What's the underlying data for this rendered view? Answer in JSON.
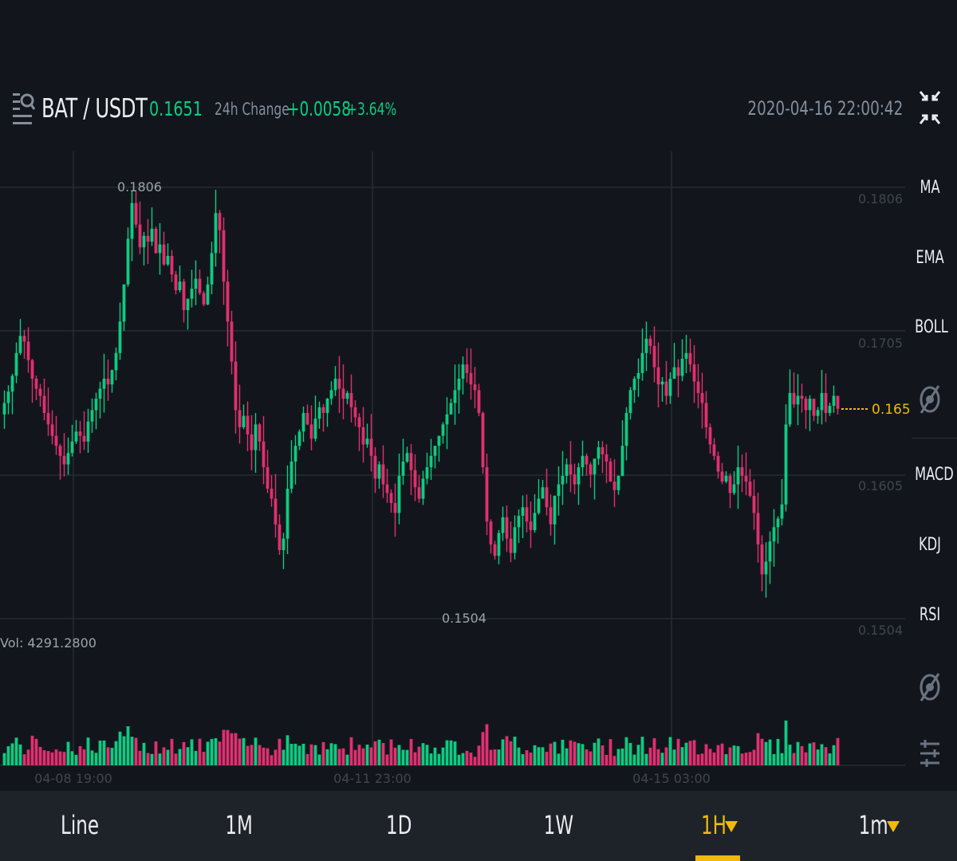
{
  "header": {
    "pair": "BAT / USDT",
    "price": "0.1651",
    "change_label": "24h Change",
    "change_abs": "+0.0058",
    "change_pct": "+3.64%",
    "datetime": "2020-04-16 22:00:42",
    "icons": {
      "pair_icon": "search-list-icon",
      "fullscreen": "fullscreen-exit-icon"
    }
  },
  "chart": {
    "high_label": "0.1806",
    "low_label": "0.1504",
    "current_price_label": "0.1651",
    "y_axis_labels": [
      "0.1806",
      "0.1705",
      "0.1605",
      "0.1504"
    ],
    "x_axis_labels": [
      "04-08 19:00",
      "04-11 23:00",
      "04-15 03:00"
    ],
    "volume_label": "Vol: 4291.2800"
  },
  "sidebar": {
    "items": [
      {
        "label": "MA"
      },
      {
        "label": "EMA"
      },
      {
        "label": "BOLL"
      },
      {
        "label": "MACD"
      },
      {
        "label": "KDJ"
      },
      {
        "label": "RSI"
      }
    ],
    "icons": [
      "eye-off-icon",
      "eye-off-icon",
      "settings-sliders-icon"
    ]
  },
  "bottom_tabs": [
    {
      "label": "Line",
      "active": false,
      "dropdown": false
    },
    {
      "label": "1M",
      "active": false,
      "dropdown": false
    },
    {
      "label": "1D",
      "active": false,
      "dropdown": false
    },
    {
      "label": "1W",
      "active": false,
      "dropdown": false
    },
    {
      "label": "1H",
      "active": true,
      "dropdown": true
    },
    {
      "label": "1m",
      "active": false,
      "dropdown": true
    }
  ],
  "colors": {
    "up": "#0ecb81",
    "down": "#e0306f",
    "accent": "#f0b90b",
    "background": "#12161c",
    "grid": "#262b33"
  },
  "chart_data": {
    "type": "candlestick",
    "interval": "1H",
    "y_range": [
      0.1504,
      0.1806
    ],
    "x_tick_labels": [
      "04-08 19:00",
      "04-11 23:00",
      "04-15 03:00"
    ],
    "marked_high": 0.1806,
    "marked_low": 0.1504,
    "last_price": 0.1651,
    "last_volume": 4291.28,
    "close_series": [
      0.1655,
      0.1663,
      0.1674,
      0.169,
      0.1702,
      0.1698,
      0.1685,
      0.1672,
      0.1665,
      0.166,
      0.1648,
      0.164,
      0.1632,
      0.1625,
      0.1618,
      0.1612,
      0.162,
      0.1628,
      0.1635,
      0.1632,
      0.1628,
      0.1642,
      0.165,
      0.1658,
      0.1665,
      0.1672,
      0.1668,
      0.1678,
      0.169,
      0.1712,
      0.1738,
      0.177,
      0.1795,
      0.178,
      0.1764,
      0.1772,
      0.1768,
      0.1777,
      0.176,
      0.1766,
      0.1752,
      0.1758,
      0.1745,
      0.1734,
      0.174,
      0.172,
      0.1728,
      0.1735,
      0.1742,
      0.1732,
      0.1724,
      0.1738,
      0.176,
      0.1788,
      0.1776,
      0.174,
      0.1712,
      0.1684,
      0.165,
      0.1638,
      0.1646,
      0.1633,
      0.1622,
      0.164,
      0.1628,
      0.161,
      0.1595,
      0.1588,
      0.157,
      0.1552,
      0.156,
      0.1595,
      0.1614,
      0.1625,
      0.1635,
      0.1648,
      0.164,
      0.163,
      0.1644,
      0.1652,
      0.1648,
      0.1658,
      0.1664,
      0.1672,
      0.1665,
      0.1658,
      0.1662,
      0.1652,
      0.1645,
      0.1638,
      0.1626,
      0.163,
      0.1618,
      0.1602,
      0.1612,
      0.1598,
      0.1592,
      0.1585,
      0.1578,
      0.1604,
      0.1614,
      0.162,
      0.1608,
      0.1596,
      0.1588,
      0.1602,
      0.161,
      0.1618,
      0.1625,
      0.1632,
      0.164,
      0.1647,
      0.1655,
      0.1664,
      0.1672,
      0.1682,
      0.1676,
      0.1668,
      0.1664,
      0.1648,
      0.161,
      0.1572,
      0.1556,
      0.1548,
      0.1564,
      0.1575,
      0.156,
      0.155,
      0.1568,
      0.1576,
      0.1582,
      0.1572,
      0.1566,
      0.1578,
      0.1588,
      0.1596,
      0.1582,
      0.157,
      0.159,
      0.1598,
      0.1604,
      0.1612,
      0.1605,
      0.1598,
      0.161,
      0.1618,
      0.1612,
      0.1605,
      0.1616,
      0.1624,
      0.1619,
      0.1614,
      0.16,
      0.1594,
      0.1604,
      0.1625,
      0.1648,
      0.1664,
      0.1672,
      0.1676,
      0.169,
      0.17,
      0.1695,
      0.168,
      0.1668,
      0.167,
      0.166,
      0.1672,
      0.168,
      0.1674,
      0.1686,
      0.169,
      0.1682,
      0.167,
      0.1662,
      0.1655,
      0.1638,
      0.1626,
      0.1618,
      0.1607,
      0.16,
      0.1604,
      0.1592,
      0.1598,
      0.161,
      0.1604,
      0.16,
      0.159,
      0.1578,
      0.1556,
      0.1535,
      0.1544,
      0.1558,
      0.1568,
      0.1574,
      0.1584,
      0.164,
      0.1662,
      0.1654,
      0.166,
      0.1658,
      0.165,
      0.1658,
      0.1646,
      0.165,
      0.1662,
      0.1648,
      0.1653,
      0.166,
      0.1651
    ]
  }
}
